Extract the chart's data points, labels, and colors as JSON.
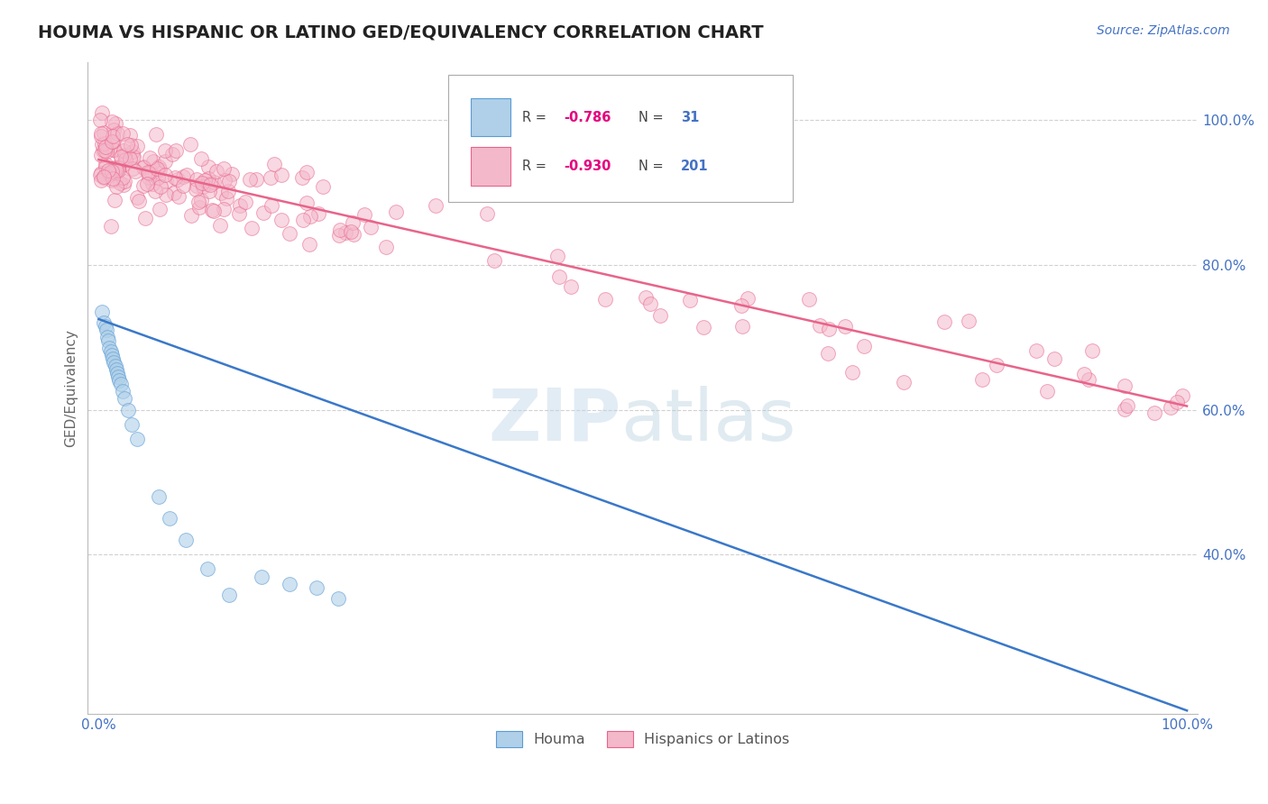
{
  "title": "HOUMA VS HISPANIC OR LATINO GED/EQUIVALENCY CORRELATION CHART",
  "source": "Source: ZipAtlas.com",
  "ylabel": "GED/Equivalency",
  "xlim": [
    -0.01,
    1.01
  ],
  "ylim": [
    0.18,
    1.08
  ],
  "yticks": [
    0.4,
    0.6,
    0.8,
    1.0
  ],
  "xticks": [
    0.0,
    1.0
  ],
  "xtick_labels": [
    "0.0%",
    "100.0%"
  ],
  "ytick_labels": [
    "40.0%",
    "60.0%",
    "80.0%",
    "100.0%"
  ],
  "blue_R": "-0.786",
  "blue_N": "31",
  "pink_R": "-0.930",
  "pink_N": "201",
  "blue_marker_color": "#afd0e8",
  "blue_edge_color": "#5b9bd5",
  "pink_marker_color": "#f4b8cb",
  "pink_edge_color": "#e8648a",
  "blue_line_color": "#3a78c9",
  "pink_line_color": "#e8648a",
  "grid_color": "#cccccc",
  "title_color": "#222222",
  "axis_tick_color": "#4472c4",
  "r_value_color": "#e6007e",
  "n_value_color": "#4472c4",
  "legend_label_blue": "Houma",
  "legend_label_pink": "Hispanics or Latinos",
  "blue_line_x": [
    0.0,
    1.0
  ],
  "blue_line_y": [
    0.725,
    0.185
  ],
  "pink_line_x": [
    0.0,
    1.0
  ],
  "pink_line_y": [
    0.945,
    0.605
  ],
  "blue_x": [
    0.003,
    0.005,
    0.006,
    0.007,
    0.008,
    0.009,
    0.01,
    0.011,
    0.012,
    0.013,
    0.014,
    0.015,
    0.016,
    0.017,
    0.018,
    0.019,
    0.02,
    0.022,
    0.024,
    0.027,
    0.03,
    0.035,
    0.055,
    0.065,
    0.08,
    0.1,
    0.12,
    0.15,
    0.175,
    0.2,
    0.22
  ],
  "blue_y": [
    0.735,
    0.72,
    0.715,
    0.71,
    0.7,
    0.695,
    0.685,
    0.68,
    0.675,
    0.67,
    0.665,
    0.66,
    0.655,
    0.65,
    0.645,
    0.64,
    0.635,
    0.625,
    0.615,
    0.6,
    0.58,
    0.56,
    0.48,
    0.45,
    0.42,
    0.38,
    0.345,
    0.37,
    0.36,
    0.355,
    0.34
  ],
  "title_fontsize": 14,
  "label_fontsize": 11,
  "source_fontsize": 10,
  "watermark_zip_color": "#c0d5e8",
  "watermark_atlas_color": "#a8c8d8"
}
